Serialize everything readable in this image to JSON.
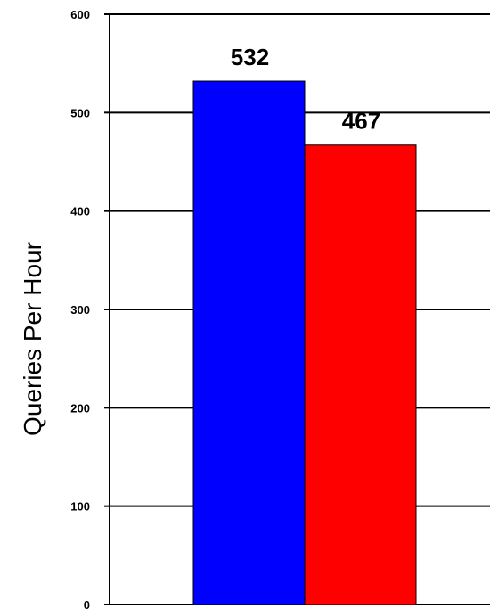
{
  "chart_data": {
    "type": "bar",
    "categories": [
      "",
      ""
    ],
    "values": [
      532,
      467
    ],
    "colors": [
      "#0000ff",
      "#ff0000"
    ],
    "ylabel": "Queries Per Hour",
    "ylim": [
      0,
      600
    ],
    "yticks": [
      "0",
      "100",
      "200",
      "300",
      "400",
      "500",
      "600"
    ],
    "grid": true,
    "data_labels": [
      "532",
      "467"
    ]
  }
}
